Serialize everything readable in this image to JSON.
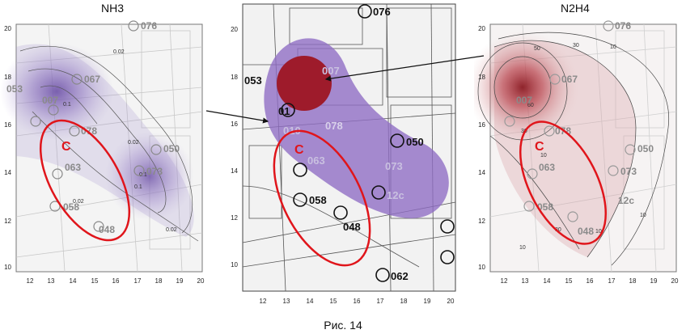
{
  "figure": {
    "caption": "Рис. 14",
    "left_panel": {
      "title": "NH3",
      "x_ticks": [
        "12",
        "13",
        "14",
        "15",
        "16",
        "17",
        "18",
        "19",
        "20"
      ],
      "y_ticks": [
        "20",
        "18",
        "16",
        "14",
        "12",
        "10"
      ],
      "zone_label": "C",
      "contour_labels": [
        "0.02",
        "0.02",
        "0.1",
        "0.1",
        "0.02",
        "0.02",
        "0.1"
      ],
      "map_labels": [
        "076",
        "067",
        "053",
        "007",
        "078",
        "050",
        "063",
        "073",
        "058",
        "048"
      ]
    },
    "middle_panel": {
      "x_ticks": [
        "12",
        "13",
        "14",
        "15",
        "16",
        "17",
        "18",
        "19",
        "20"
      ],
      "y_ticks": [
        "20",
        "18",
        "16",
        "14",
        "12",
        "10"
      ],
      "zone_label": "C",
      "map_labels": [
        "076",
        "053",
        "007",
        "01",
        "010",
        "078",
        "050",
        "063",
        "073",
        "12c",
        "058",
        "048",
        "062"
      ]
    },
    "right_panel": {
      "title": "N2H4",
      "x_ticks": [
        "12",
        "13",
        "14",
        "15",
        "16",
        "17",
        "18",
        "19",
        "20"
      ],
      "y_ticks": [
        "20",
        "18",
        "16",
        "14",
        "12",
        "10"
      ],
      "zone_label": "C",
      "contour_labels": [
        "50",
        "30",
        "10",
        "60",
        "30",
        "10",
        "10",
        "30",
        "10",
        "10"
      ],
      "map_labels": [
        "076",
        "067",
        "007",
        "078",
        "050",
        "063",
        "073",
        "058",
        "048",
        "12c"
      ]
    }
  },
  "colors": {
    "purple_plume": "#8e6cc4",
    "dark_red_source": "#9e1b2b",
    "red_zone": "#e0151b",
    "n2h4_plume": "#b2303a"
  }
}
